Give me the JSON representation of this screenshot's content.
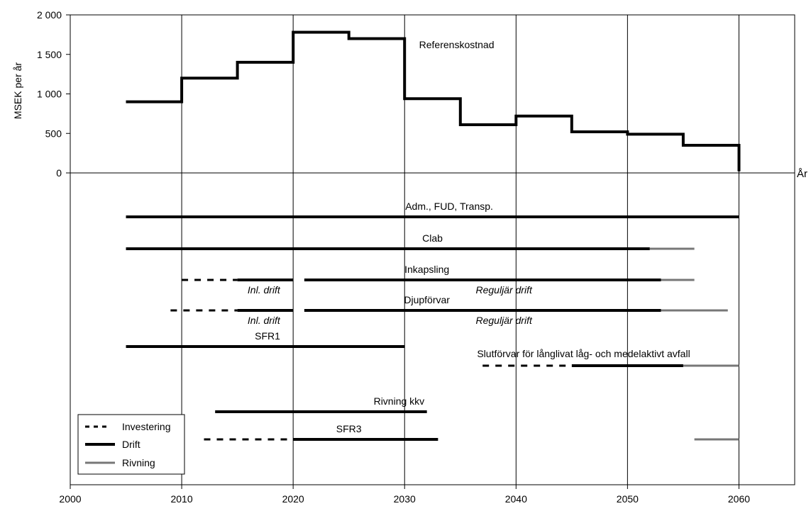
{
  "chart_data": {
    "type": "line",
    "ylabel": "MSEK per år",
    "xlabel": "År",
    "xlim": [
      2000,
      2065
    ],
    "ylim": [
      0,
      2000
    ],
    "x_ticks": [
      2000,
      2010,
      2020,
      2030,
      2040,
      2050,
      2060
    ],
    "x_tick_labels": [
      "2000",
      "2010",
      "2020",
      "2030",
      "2040",
      "2050",
      "2060"
    ],
    "y_ticks": [
      0,
      500,
      1000,
      1500,
      2000
    ],
    "y_tick_labels": [
      "0",
      "500",
      "1 000",
      "1 500",
      "2 000"
    ],
    "grid": "vertical",
    "series": [
      {
        "name": "Referenskostnad",
        "style": "step",
        "x": [
          2005,
          2010,
          2010,
          2015,
          2015,
          2020,
          2020,
          2025,
          2025,
          2030,
          2030,
          2035,
          2035,
          2040,
          2040,
          2045,
          2045,
          2050,
          2050,
          2055,
          2055,
          2060,
          2060
        ],
        "y": [
          900,
          900,
          1200,
          1200,
          1400,
          1400,
          1780,
          1780,
          1700,
          1700,
          940,
          940,
          610,
          610,
          720,
          720,
          520,
          520,
          490,
          490,
          350,
          350,
          20
        ]
      }
    ],
    "timeline": [
      {
        "label": "Adm., FUD, Transp.",
        "segments": [
          {
            "kind": "drift",
            "start": 2005,
            "end": 2060
          }
        ]
      },
      {
        "label": "Clab",
        "segments": [
          {
            "kind": "drift",
            "start": 2005,
            "end": 2052
          },
          {
            "kind": "rivning",
            "start": 2052,
            "end": 2056
          }
        ]
      },
      {
        "label": "Inkapsling",
        "segments": [
          {
            "kind": "investering",
            "start": 2010,
            "end": 2015
          },
          {
            "kind": "drift",
            "start": 2015,
            "end": 2020,
            "note": "Inl. drift"
          },
          {
            "kind": "drift",
            "start": 2021,
            "end": 2053,
            "note": "Reguljär drift"
          },
          {
            "kind": "rivning",
            "start": 2053,
            "end": 2056
          }
        ]
      },
      {
        "label": "Djupförvar",
        "segments": [
          {
            "kind": "investering",
            "start": 2009,
            "end": 2015
          },
          {
            "kind": "drift",
            "start": 2015,
            "end": 2020,
            "note": "Inl. drift"
          },
          {
            "kind": "drift",
            "start": 2021,
            "end": 2053,
            "note": "Reguljär drift"
          },
          {
            "kind": "rivning",
            "start": 2053,
            "end": 2059
          }
        ]
      },
      {
        "label": "SFR1",
        "segments": [
          {
            "kind": "drift",
            "start": 2005,
            "end": 2030
          }
        ]
      },
      {
        "label": "Slutförvar för långlivat låg- och medelaktivt avfall",
        "segments": [
          {
            "kind": "investering",
            "start": 2037,
            "end": 2045
          },
          {
            "kind": "drift",
            "start": 2045,
            "end": 2055
          },
          {
            "kind": "rivning",
            "start": 2055,
            "end": 2060
          }
        ]
      },
      {
        "label": "Rivning kkv",
        "segments": [
          {
            "kind": "drift",
            "start": 2013,
            "end": 2032
          }
        ]
      },
      {
        "label": "SFR3",
        "segments": [
          {
            "kind": "investering",
            "start": 2012,
            "end": 2027
          },
          {
            "kind": "drift",
            "start": 2020,
            "end": 2033
          },
          {
            "kind": "rivning",
            "start": 2056,
            "end": 2060
          }
        ]
      }
    ],
    "legend": {
      "placement": "bottom-left",
      "items": [
        {
          "kind": "investering",
          "label": "Investering"
        },
        {
          "kind": "drift",
          "label": "Drift"
        },
        {
          "kind": "rivning",
          "label": "Rivning"
        }
      ]
    },
    "colors": {
      "drift": "#000000",
      "investering": "#000000",
      "rivning": "#777777",
      "grid": "#000000"
    }
  }
}
